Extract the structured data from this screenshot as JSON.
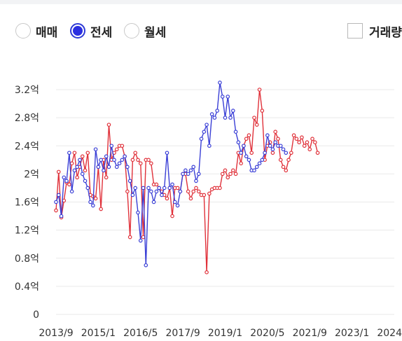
{
  "filters": {
    "options": [
      {
        "label": "매매",
        "selected": false
      },
      {
        "label": "전세",
        "selected": true
      },
      {
        "label": "월세",
        "selected": false
      }
    ],
    "volume_toggle": {
      "label": "거래량",
      "checked": false
    }
  },
  "colors": {
    "accent": "#2b2fe0",
    "red_series": "#e0313a",
    "blue_series": "#3a3fd6",
    "grid": "#e9e9e9"
  },
  "chart_data": {
    "type": "line",
    "title": "",
    "xlabel": "",
    "ylabel": "",
    "y_unit": "억",
    "ylim": [
      0,
      3.2
    ],
    "yticks": [
      0,
      0.4,
      0.8,
      1.2,
      1.6,
      2.0,
      2.4,
      2.8,
      3.2
    ],
    "ytick_labels": [
      "0",
      "0.4억",
      "0.8억",
      "1.2억",
      "1.6억",
      "2억",
      "2.4억",
      "2.8억",
      "3.2억"
    ],
    "xlim": [
      "2013-09",
      "2024-05"
    ],
    "xticks": [
      "2013-09",
      "2015-01",
      "2016-05",
      "2017-09",
      "2019-01",
      "2020-05",
      "2021-09",
      "2023-01",
      "2024-05"
    ],
    "xtick_labels": [
      "2013/9",
      "2015/1",
      "2016/5",
      "2017/9",
      "2019/1",
      "2020/5",
      "2021/9",
      "2023/1",
      "2024/5"
    ],
    "grid": true,
    "series": [
      {
        "name": "",
        "color": "#e0313a",
        "points": [
          [
            "2013-09",
            1.48
          ],
          [
            "2013-10",
            2.03
          ],
          [
            "2013-11",
            1.38
          ],
          [
            "2013-12",
            1.62
          ],
          [
            "2014-01",
            1.88
          ],
          [
            "2014-02",
            1.85
          ],
          [
            "2014-03",
            2.15
          ],
          [
            "2014-04",
            2.3
          ],
          [
            "2014-05",
            1.95
          ],
          [
            "2014-06",
            2.1
          ],
          [
            "2014-07",
            2.25
          ],
          [
            "2014-08",
            2.05
          ],
          [
            "2014-09",
            2.3
          ],
          [
            "2014-10",
            1.7
          ],
          [
            "2014-11",
            1.68
          ],
          [
            "2014-12",
            1.65
          ],
          [
            "2015-01",
            2.1
          ],
          [
            "2015-02",
            1.5
          ],
          [
            "2015-03",
            2.2
          ],
          [
            "2015-04",
            1.95
          ],
          [
            "2015-05",
            2.7
          ],
          [
            "2015-06",
            2.2
          ],
          [
            "2015-07",
            2.3
          ],
          [
            "2015-08",
            2.35
          ],
          [
            "2015-09",
            2.4
          ],
          [
            "2015-10",
            2.4
          ],
          [
            "2015-11",
            2.25
          ],
          [
            "2015-12",
            1.75
          ],
          [
            "2016-01",
            1.1
          ],
          [
            "2016-02",
            2.2
          ],
          [
            "2016-03",
            2.3
          ],
          [
            "2016-04",
            2.2
          ],
          [
            "2016-05",
            2.15
          ],
          [
            "2016-06",
            1.1
          ],
          [
            "2016-07",
            2.2
          ],
          [
            "2016-08",
            2.2
          ],
          [
            "2016-09",
            2.15
          ],
          [
            "2016-10",
            1.85
          ],
          [
            "2016-11",
            1.85
          ],
          [
            "2016-12",
            1.8
          ],
          [
            "2017-01",
            1.75
          ],
          [
            "2017-02",
            1.7
          ],
          [
            "2017-03",
            1.65
          ],
          [
            "2017-04",
            1.8
          ],
          [
            "2017-05",
            1.4
          ],
          [
            "2017-06",
            1.8
          ],
          [
            "2017-07",
            1.8
          ],
          [
            "2017-08",
            1.75
          ],
          [
            "2017-09",
            2.0
          ],
          [
            "2017-10",
            2.0
          ],
          [
            "2017-11",
            1.75
          ],
          [
            "2017-12",
            1.65
          ],
          [
            "2018-01",
            1.75
          ],
          [
            "2018-02",
            1.8
          ],
          [
            "2018-03",
            1.75
          ],
          [
            "2018-04",
            1.7
          ],
          [
            "2018-05",
            1.7
          ],
          [
            "2018-06",
            0.6
          ],
          [
            "2018-07",
            1.72
          ],
          [
            "2018-08",
            1.78
          ],
          [
            "2018-09",
            1.8
          ],
          [
            "2018-10",
            1.8
          ],
          [
            "2018-11",
            1.8
          ],
          [
            "2018-12",
            2.0
          ],
          [
            "2019-01",
            2.05
          ],
          [
            "2019-02",
            1.95
          ],
          [
            "2019-03",
            2.0
          ],
          [
            "2019-04",
            2.05
          ],
          [
            "2019-05",
            2.0
          ],
          [
            "2019-06",
            2.3
          ],
          [
            "2019-07",
            2.15
          ],
          [
            "2019-08",
            2.4
          ],
          [
            "2019-09",
            2.5
          ],
          [
            "2019-10",
            2.55
          ],
          [
            "2019-11",
            2.3
          ],
          [
            "2019-12",
            2.8
          ],
          [
            "2020-01",
            2.7
          ],
          [
            "2020-02",
            3.2
          ],
          [
            "2020-03",
            2.9
          ],
          [
            "2020-04",
            2.2
          ],
          [
            "2020-05",
            2.4
          ],
          [
            "2020-06",
            2.45
          ],
          [
            "2020-07",
            2.3
          ],
          [
            "2020-08",
            2.6
          ],
          [
            "2020-09",
            2.5
          ],
          [
            "2020-10",
            2.2
          ],
          [
            "2020-11",
            2.1
          ],
          [
            "2020-12",
            2.05
          ],
          [
            "2021-01",
            2.2
          ],
          [
            "2021-02",
            2.3
          ],
          [
            "2021-03",
            2.55
          ],
          [
            "2021-04",
            2.5
          ],
          [
            "2021-05",
            2.45
          ],
          [
            "2021-06",
            2.52
          ],
          [
            "2021-07",
            2.4
          ],
          [
            "2021-08",
            2.45
          ],
          [
            "2021-09",
            2.35
          ],
          [
            "2021-10",
            2.5
          ],
          [
            "2021-11",
            2.45
          ],
          [
            "2021-12",
            2.3
          ]
        ]
      },
      {
        "name": "",
        "color": "#3a3fd6",
        "points": [
          [
            "2013-09",
            1.6
          ],
          [
            "2013-10",
            1.7
          ],
          [
            "2013-11",
            1.4
          ],
          [
            "2013-12",
            1.95
          ],
          [
            "2014-01",
            1.9
          ],
          [
            "2014-02",
            2.3
          ],
          [
            "2014-03",
            1.75
          ],
          [
            "2014-04",
            2.05
          ],
          [
            "2014-05",
            2.1
          ],
          [
            "2014-06",
            2.2
          ],
          [
            "2014-07",
            2.0
          ],
          [
            "2014-08",
            1.9
          ],
          [
            "2014-09",
            1.8
          ],
          [
            "2014-10",
            1.6
          ],
          [
            "2014-11",
            1.55
          ],
          [
            "2014-12",
            2.35
          ],
          [
            "2015-01",
            2.1
          ],
          [
            "2015-02",
            2.2
          ],
          [
            "2015-03",
            2.05
          ],
          [
            "2015-04",
            2.25
          ],
          [
            "2015-05",
            2.1
          ],
          [
            "2015-06",
            2.4
          ],
          [
            "2015-07",
            2.2
          ],
          [
            "2015-08",
            2.1
          ],
          [
            "2015-09",
            2.15
          ],
          [
            "2015-10",
            2.2
          ],
          [
            "2015-11",
            2.25
          ],
          [
            "2015-12",
            2.1
          ],
          [
            "2016-01",
            1.9
          ],
          [
            "2016-02",
            1.7
          ],
          [
            "2016-03",
            1.8
          ],
          [
            "2016-04",
            1.45
          ],
          [
            "2016-05",
            1.05
          ],
          [
            "2016-06",
            1.8
          ],
          [
            "2016-07",
            0.7
          ],
          [
            "2016-08",
            1.8
          ],
          [
            "2016-09",
            1.75
          ],
          [
            "2016-10",
            1.6
          ],
          [
            "2016-11",
            1.75
          ],
          [
            "2016-12",
            1.8
          ],
          [
            "2017-01",
            1.7
          ],
          [
            "2017-02",
            1.8
          ],
          [
            "2017-03",
            2.3
          ],
          [
            "2017-04",
            1.8
          ],
          [
            "2017-05",
            1.85
          ],
          [
            "2017-06",
            1.6
          ],
          [
            "2017-07",
            1.55
          ],
          [
            "2017-08",
            1.75
          ],
          [
            "2017-09",
            2.0
          ],
          [
            "2017-10",
            2.05
          ],
          [
            "2017-11",
            2.0
          ],
          [
            "2017-12",
            2.05
          ],
          [
            "2018-01",
            2.1
          ],
          [
            "2018-02",
            1.9
          ],
          [
            "2018-03",
            2.0
          ],
          [
            "2018-04",
            2.5
          ],
          [
            "2018-05",
            2.6
          ],
          [
            "2018-06",
            2.7
          ],
          [
            "2018-07",
            2.4
          ],
          [
            "2018-08",
            2.85
          ],
          [
            "2018-09",
            2.8
          ],
          [
            "2018-10",
            2.9
          ],
          [
            "2018-11",
            3.3
          ],
          [
            "2018-12",
            3.1
          ],
          [
            "2019-01",
            2.8
          ],
          [
            "2019-02",
            3.1
          ],
          [
            "2019-03",
            2.8
          ],
          [
            "2019-04",
            2.9
          ],
          [
            "2019-05",
            2.6
          ],
          [
            "2019-06",
            2.45
          ],
          [
            "2019-07",
            2.3
          ],
          [
            "2019-08",
            2.4
          ],
          [
            "2019-09",
            2.25
          ],
          [
            "2019-10",
            2.2
          ],
          [
            "2019-11",
            2.05
          ],
          [
            "2019-12",
            2.05
          ],
          [
            "2020-01",
            2.1
          ],
          [
            "2020-02",
            2.15
          ],
          [
            "2020-03",
            2.2
          ],
          [
            "2020-04",
            2.3
          ],
          [
            "2020-05",
            2.55
          ],
          [
            "2020-06",
            2.4
          ],
          [
            "2020-07",
            2.35
          ],
          [
            "2020-08",
            2.45
          ],
          [
            "2020-09",
            2.4
          ],
          [
            "2020-10",
            2.4
          ],
          [
            "2020-11",
            2.35
          ],
          [
            "2020-12",
            2.3
          ]
        ]
      }
    ]
  }
}
